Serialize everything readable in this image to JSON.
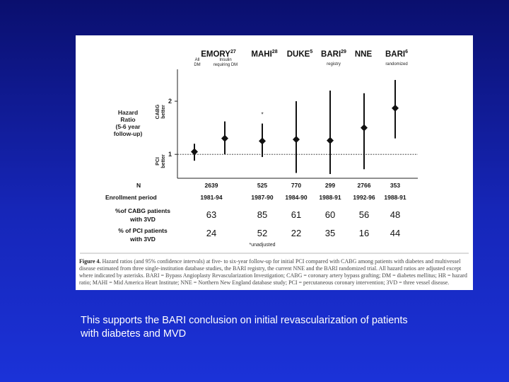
{
  "slide": {
    "bottom_text": "This supports the BARI conclusion on initial revascularization of patients with diabetes and MVD"
  },
  "figure": {
    "caption_label": "Figure 4.",
    "caption_text": "Hazard ratios (and 95% confidence intervals) at five- to six-year follow-up for initial PCI compared with CABG among patients with diabetes and multivessel disease estimated from three single-institution database studies, the BARI registry, the current NNE and the BARI randomized trial. All hazard ratios are adjusted except where indicated by asterisks. BARI = Bypass Angioplasty Revascularization Investigation; CABG = coronary artery bypass grafting; DM = diabetes mellitus; HR = hazard ratio; MAHI = Mid America Heart Institute; NNE = Northern New England database study; PCI = percutaneous coronary intervention; 3VD = three vessel disease."
  },
  "chart_data": {
    "type": "scatter",
    "ylabel": "Hazard Ratio (5-6 year follow-up)",
    "y_side_labels": {
      "upper": "CABG better",
      "lower": "PCI better"
    },
    "yticks": [
      1,
      2
    ],
    "ylim": [
      0.55,
      2.6
    ],
    "reference_line": 1,
    "study_headers": [
      {
        "name": "EMORY",
        "sup": "27",
        "sub": [
          "All DM",
          "Insulin requiring DM"
        ]
      },
      {
        "name": "MAHI",
        "sup": "28",
        "sub": []
      },
      {
        "name": "DUKE",
        "sup": "5",
        "sub": []
      },
      {
        "name": "BARI",
        "sup": "29",
        "sub": [
          "registry"
        ]
      },
      {
        "name": "NNE",
        "sup": "",
        "sub": []
      },
      {
        "name": "BARI",
        "sup": "6",
        "sub": [
          "randomized"
        ]
      }
    ],
    "points": [
      {
        "study": "EMORY All DM",
        "hr": 1.05,
        "lower": 0.88,
        "upper": 1.2
      },
      {
        "study": "EMORY Insulin requiring DM",
        "hr": 1.3,
        "lower": 1.0,
        "upper": 1.62
      },
      {
        "study": "MAHI",
        "hr": 1.25,
        "lower": 0.95,
        "upper": 1.58,
        "asterisk": "*"
      },
      {
        "study": "DUKE",
        "hr": 1.28,
        "lower": 0.65,
        "upper": 2.0
      },
      {
        "study": "BARI registry",
        "hr": 1.26,
        "lower": 0.63,
        "upper": 2.2
      },
      {
        "study": "NNE",
        "hr": 1.5,
        "lower": 0.72,
        "upper": 2.15
      },
      {
        "study": "BARI randomized",
        "hr": 1.87,
        "lower": 1.3,
        "upper": 2.4
      }
    ],
    "table": {
      "row_labels": [
        "N",
        "Enrollment period",
        "%of CABG patients with 3VD",
        "% of PCI patients with 3VD"
      ],
      "N": [
        "2639",
        "525",
        "770",
        "299",
        "2766",
        "353"
      ],
      "enrollment": [
        "1981-94",
        "1987-90",
        "1984-90",
        "1988-91",
        "1992-96",
        "1988-91"
      ],
      "cabg_3vd": [
        "63",
        "85",
        "61",
        "60",
        "56",
        "48"
      ],
      "pci_3vd": [
        "24",
        "52",
        "22",
        "35",
        "16",
        "44"
      ],
      "footnote": "*unadjusted"
    }
  }
}
